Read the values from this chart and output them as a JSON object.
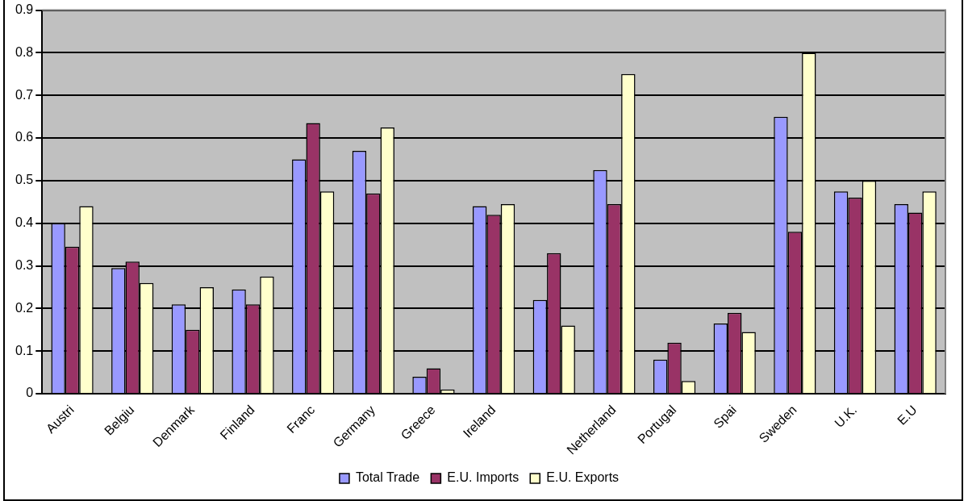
{
  "chart_data": {
    "type": "bar",
    "categories": [
      "Austri",
      "Belgiu",
      "Denmark",
      "Finland",
      "Franc",
      "Germany",
      "Greece",
      "Ireland",
      null,
      "Netherland",
      "Portugal",
      "Spai",
      "Sweden",
      "U.K.",
      "E.U"
    ],
    "series": [
      {
        "name": "Total Trade",
        "color": "#9999ff",
        "values": [
          0.4,
          0.295,
          0.21,
          0.245,
          0.55,
          0.57,
          0.04,
          0.44,
          0.22,
          0.525,
          0.08,
          0.165,
          0.65,
          0.475,
          0.445
        ]
      },
      {
        "name": "E.U. Imports",
        "color": "#993366",
        "values": [
          0.345,
          0.31,
          0.15,
          0.21,
          0.635,
          0.47,
          0.06,
          0.42,
          0.33,
          0.445,
          0.12,
          0.19,
          0.38,
          0.46,
          0.425
        ]
      },
      {
        "name": "E.U. Exports",
        "color": "#ffffcc",
        "values": [
          0.44,
          0.26,
          0.25,
          0.275,
          0.475,
          0.625,
          0.01,
          0.445,
          0.16,
          0.75,
          0.03,
          0.145,
          0.8,
          0.5,
          0.475
        ]
      }
    ],
    "ylim": [
      0,
      0.9
    ],
    "yticks": [
      0,
      0.1,
      0.2,
      0.3,
      0.4,
      0.5,
      0.6,
      0.7,
      0.8,
      0.9
    ],
    "grid": "y",
    "legend": "bottom"
  }
}
